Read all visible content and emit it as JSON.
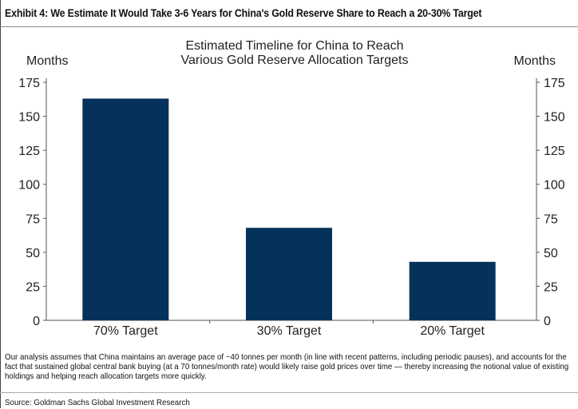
{
  "exhibit_title": "Exhibit 4: We Estimate It Would Take 3-6 Years for China's Gold Reserve Share to Reach a 20-30% Target",
  "note": "Our analysis assumes that China maintains an average pace of  ~40 tonnes per month (in line with recent patterns, including periodic pauses), and accounts for the fact that sustained global central bank buying (at a 70 tonnes/month rate) would likely raise gold prices over time — thereby increasing the notional value of existing holdings and helping reach allocation targets more quickly.",
  "source": "Source: Goldman Sachs Global Investment Research",
  "chart_data": {
    "type": "bar",
    "title_lines": [
      "Estimated Timeline for China to Reach",
      "Various Gold Reserve Allocation Targets"
    ],
    "ylabel_left": "Months",
    "ylabel_right": "Months",
    "categories": [
      "70% Target",
      "30% Target",
      "20% Target"
    ],
    "values": [
      163,
      68,
      43
    ],
    "ylim": [
      0,
      175
    ],
    "yticks": [
      0,
      25,
      50,
      75,
      100,
      125,
      150,
      175
    ],
    "grid": false,
    "bar_color": "#04325A"
  }
}
